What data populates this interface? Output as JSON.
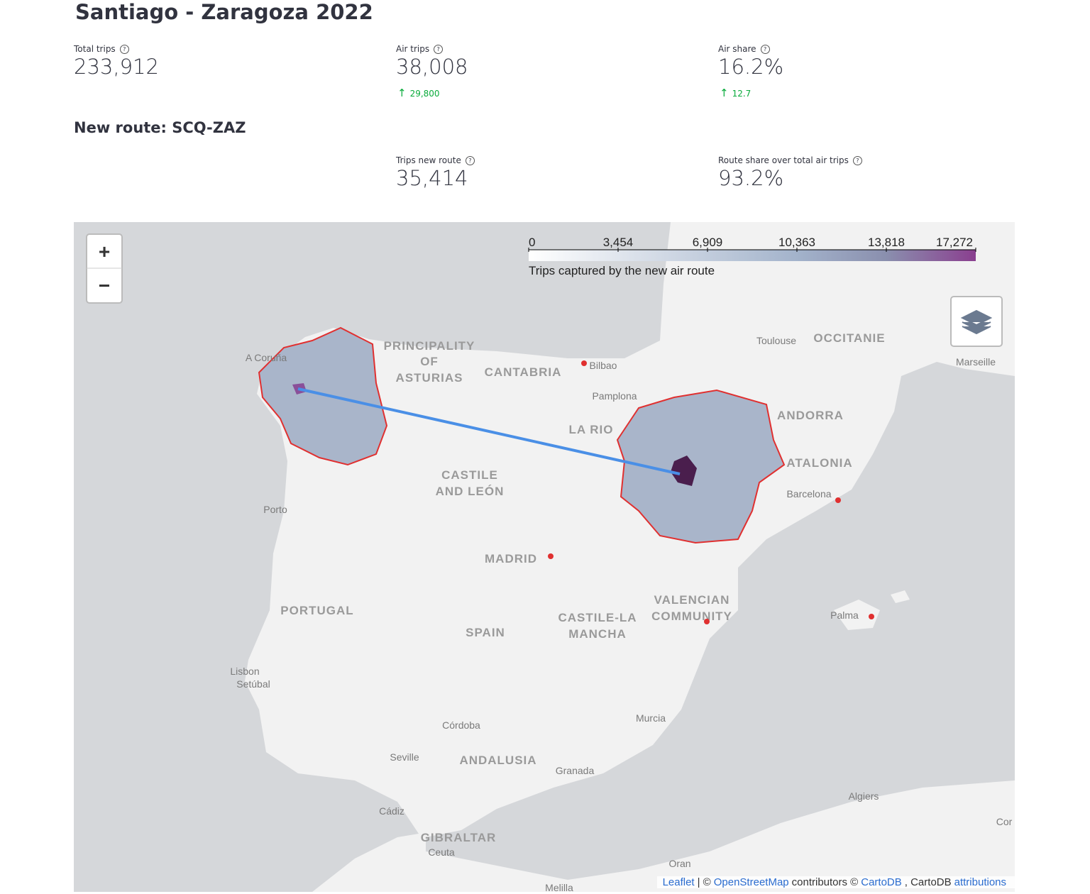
{
  "header": {
    "title": "Santiago - Zaragoza 2022"
  },
  "metrics": [
    {
      "label": "Total trips",
      "value": "233,912"
    },
    {
      "label": "Air trips",
      "value": "38,008",
      "delta": "29,800"
    },
    {
      "label": "Air share",
      "value": "16.2%",
      "delta": "12.7"
    }
  ],
  "subheader": "New route: SCQ-ZAZ",
  "route_metrics": [
    {
      "label": "Trips new route",
      "value": "35,414"
    },
    {
      "label": "Route share over total air trips",
      "value": "93.2%"
    }
  ],
  "map": {
    "zoom_in": "+",
    "zoom_out": "−",
    "legend": {
      "ticks": [
        "0",
        "3,454",
        "6,909",
        "10,363",
        "13,818",
        "17,272"
      ],
      "caption": "Trips captured by the new air route"
    },
    "labels": [
      "A Coruña",
      "PRINCIPALITY",
      "OF",
      "ASTURIAS",
      "CANTABRIA",
      "Bilbao",
      "Pamplona",
      "LA RIO",
      "Toulouse",
      "OCCITANIE",
      "Marseille",
      "ANDORRA",
      "ATALONIA",
      "Barcelona",
      "CASTILE",
      "AND LEÓN",
      "Porto",
      "MADRID",
      "PORTUGAL",
      "SPAIN",
      "CASTILE-LA",
      "MANCHA",
      "VALENCIAN",
      "COMMUNITY",
      "Palma",
      "Lisbon",
      "Setúbal",
      "Córdoba",
      "Murcia",
      "Seville",
      "ANDALUSIA",
      "Granada",
      "Cádiz",
      "GIBRALTAR",
      "Ceuta",
      "Algiers",
      "Oran",
      "Melilla",
      "Cor"
    ],
    "attribution": [
      {
        "text": "Leaflet",
        "link": true
      },
      {
        "text": "| ©",
        "link": false
      },
      {
        "text": "OpenStreetMap",
        "link": true
      },
      {
        "text": "contributors ©",
        "link": false
      },
      {
        "text": "CartoDB",
        "link": true
      },
      {
        "text": ", CartoDB",
        "link": false
      },
      {
        "text": "attributions",
        "link": true
      }
    ]
  }
}
